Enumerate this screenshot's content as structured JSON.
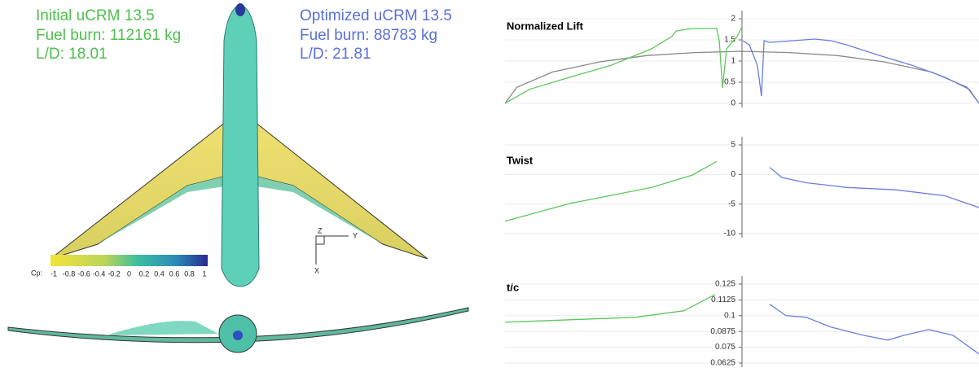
{
  "figure": {
    "initial": {
      "title": "Initial uCRM 13.5",
      "fuel": "Fuel burn: 112161 kg",
      "ld": "L/D: 18.01"
    },
    "optimized": {
      "title": "Optimized uCRM 13.5",
      "fuel": "Fuel burn: 88783 kg",
      "ld": "L/D: 21.81"
    },
    "colorbar": {
      "label": "Cp:",
      "ticks": [
        "-1",
        "-0.8",
        "-0.6",
        "-0.4",
        "-0.2",
        "0",
        "0.2",
        "0.4",
        "0.6",
        "0.8",
        "1"
      ]
    },
    "axes_triad": {
      "y": "Y",
      "x": "X",
      "z": "Z"
    }
  },
  "chart_data": [
    {
      "type": "line",
      "title": "Normalized Lift",
      "xlim": [
        -1,
        1
      ],
      "ylim": [
        0,
        2
      ],
      "yticks": [
        0,
        0.5,
        1,
        1.5,
        2
      ],
      "grid": true,
      "series": [
        {
          "color": "#888888",
          "x": [
            -1,
            -0.95,
            -0.8,
            -0.6,
            -0.4,
            -0.2,
            0,
            0.2,
            0.4,
            0.6,
            0.8,
            0.95,
            1
          ],
          "values": [
            0,
            0.38,
            0.74,
            0.98,
            1.13,
            1.2,
            1.23,
            1.2,
            1.13,
            0.98,
            0.74,
            0.38,
            0
          ]
        },
        {
          "color": "#5cc85c",
          "x": [
            -1,
            -0.897,
            -0.725,
            -0.553,
            -0.381,
            -0.296,
            -0.278,
            -0.21,
            -0.107,
            -0.096,
            -0.082,
            -0.065,
            -0.021,
            -0.003
          ],
          "values": [
            0,
            0.33,
            0.62,
            0.9,
            1.29,
            1.58,
            1.71,
            1.77,
            1.77,
            1.48,
            0.37,
            1.29,
            1.58,
            1.77
          ]
        },
        {
          "color": "#6a7fe0",
          "x": [
            0.003,
            0.031,
            0.065,
            0.082,
            0.093,
            0.117,
            0.306,
            0.375,
            0.443,
            0.581,
            0.718,
            0.856,
            0.959,
            1
          ],
          "values": [
            1.48,
            1.38,
            0.9,
            0.17,
            1.48,
            1.44,
            1.52,
            1.48,
            1.38,
            1.13,
            0.9,
            0.62,
            0.33,
            0
          ]
        }
      ]
    },
    {
      "type": "line",
      "title": "Twist",
      "xlim": [
        -1,
        1
      ],
      "ylim": [
        -10,
        5
      ],
      "yticks": [
        -10,
        -5,
        0,
        5
      ],
      "grid": true,
      "series": [
        {
          "color": "#5cc85c",
          "x": [
            -1,
            -0.725,
            -0.381,
            -0.21,
            -0.107
          ],
          "values": [
            -7.9,
            -4.9,
            -2.2,
            -0.1,
            2.2
          ]
        },
        {
          "color": "#6a7fe0",
          "x": [
            0.117,
            0.168,
            0.271,
            0.443,
            0.649,
            0.856,
            1
          ],
          "values": [
            1.2,
            -0.5,
            -1.4,
            -2.2,
            -2.6,
            -3.6,
            -5.6
          ]
        }
      ]
    },
    {
      "type": "line",
      "title": "t/c",
      "xlim": [
        -1,
        1
      ],
      "ylim": [
        0.0625,
        0.125
      ],
      "yticks": [
        0.0625,
        0.075,
        0.0875,
        0.1,
        0.1125,
        0.125
      ],
      "grid": true,
      "series": [
        {
          "color": "#5cc85c",
          "x": [
            -1,
            -0.725,
            -0.45,
            -0.244,
            -0.113
          ],
          "values": [
            0.0948,
            0.0968,
            0.0987,
            0.1039,
            0.1168
          ]
        },
        {
          "color": "#6a7fe0",
          "x": [
            0.117,
            0.186,
            0.271,
            0.375,
            0.512,
            0.615,
            0.684,
            0.787,
            0.89,
            1
          ],
          "values": [
            0.109,
            0.1,
            0.0987,
            0.091,
            0.0845,
            0.0807,
            0.0845,
            0.089,
            0.0845,
            0.0697
          ]
        }
      ]
    }
  ]
}
